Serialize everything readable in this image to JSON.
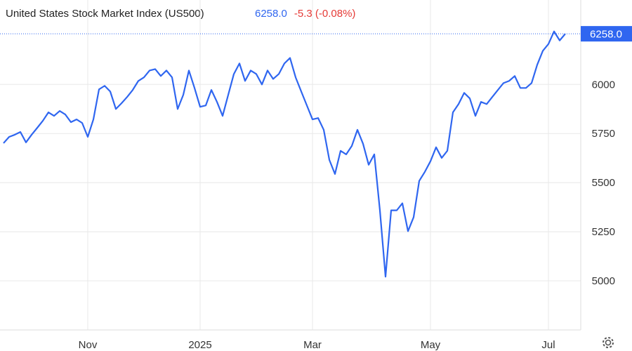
{
  "chart_data": {
    "type": "line",
    "title": "United States Stock Market Index (US500)",
    "price": "6258.0",
    "change": "-5.3 (-0.08%)",
    "categories": [
      null,
      null,
      null,
      null,
      null,
      null,
      null,
      null,
      null,
      null,
      null,
      null,
      null,
      null,
      null,
      "Nov",
      null,
      null,
      null,
      null,
      null,
      null,
      null,
      null,
      null,
      null,
      null,
      null,
      null,
      null,
      null,
      null,
      null,
      null,
      null,
      "2025",
      null,
      null,
      null,
      null,
      null,
      null,
      null,
      null,
      null,
      null,
      null,
      null,
      null,
      null,
      null,
      null,
      null,
      null,
      null,
      "Mar",
      null,
      null,
      null,
      null,
      null,
      null,
      null,
      null,
      null,
      null,
      null,
      null,
      null,
      null,
      null,
      null,
      null,
      null,
      null,
      null,
      "May",
      null,
      null,
      null,
      null,
      null,
      null,
      null,
      null,
      null,
      null,
      null,
      null,
      null,
      null,
      null,
      null,
      null,
      null,
      null,
      null,
      "Jul",
      null,
      null,
      null
    ],
    "series": [
      {
        "name": "US500",
        "color": "#2f66f0",
        "values": [
          5701,
          5733,
          5744,
          5758,
          5705,
          5744,
          5779,
          5815,
          5858,
          5840,
          5865,
          5847,
          5808,
          5822,
          5804,
          5733,
          5822,
          5975,
          5993,
          5964,
          5875,
          5904,
          5936,
          5972,
          6018,
          6036,
          6071,
          6078,
          6043,
          6071,
          6036,
          5875,
          5947,
          6071,
          5982,
          5886,
          5893,
          5972,
          5911,
          5840,
          5947,
          6053,
          6107,
          6018,
          6071,
          6053,
          6000,
          6071,
          6028,
          6053,
          6107,
          6135,
          6036,
          5964,
          5893,
          5822,
          5829,
          5769,
          5616,
          5544,
          5662,
          5644,
          5687,
          5769,
          5698,
          5591,
          5644,
          5359,
          5021,
          5359,
          5359,
          5395,
          5253,
          5324,
          5509,
          5555,
          5609,
          5680,
          5626,
          5662,
          5858,
          5900,
          5957,
          5929,
          5840,
          5911,
          5900,
          5936,
          5972,
          6007,
          6018,
          6043,
          5982,
          5982,
          6007,
          6100,
          6171,
          6206,
          6270,
          6224,
          6258
        ]
      }
    ],
    "ylim": [
      4750,
      6430
    ],
    "yticks": [
      5000,
      5250,
      5500,
      5750,
      6000
    ],
    "grid": true
  }
}
